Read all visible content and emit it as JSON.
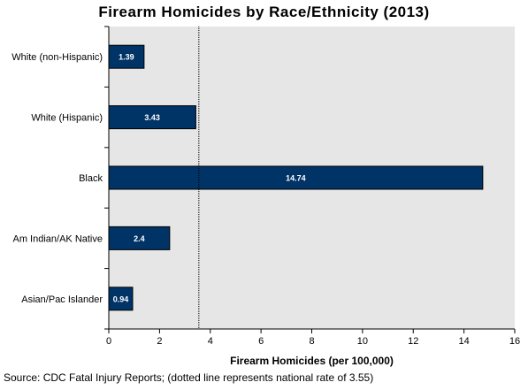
{
  "chart_data": {
    "type": "bar",
    "orientation": "horizontal",
    "title": "Firearm Homicides by Race/Ethnicity (2013)",
    "xlabel": "Firearm Homicides (per 100,000)",
    "ylabel": "",
    "categories": [
      "White (non-Hispanic)",
      "White (Hispanic)",
      "Black",
      "Am Indian/AK Native",
      "Asian/Pac Islander"
    ],
    "values": [
      1.39,
      3.43,
      14.74,
      2.4,
      0.94
    ],
    "data_labels": [
      "1.39",
      "3.43",
      "14.74",
      "2.4",
      "0.94"
    ],
    "xlim": [
      0,
      16
    ],
    "xticks": [
      "0",
      "2",
      "4",
      "6",
      "8",
      "10",
      "12",
      "14",
      "16"
    ],
    "reference_line": {
      "value": 3.55,
      "style": "dotted"
    },
    "grid": false,
    "legend": "none",
    "colors": {
      "bar": "#003366",
      "plot_background": "#e6e6e6",
      "bar_label": "#ffffff"
    }
  },
  "source": "Source: CDC Fatal Injury Reports; (dotted line represents national rate of 3.55)"
}
